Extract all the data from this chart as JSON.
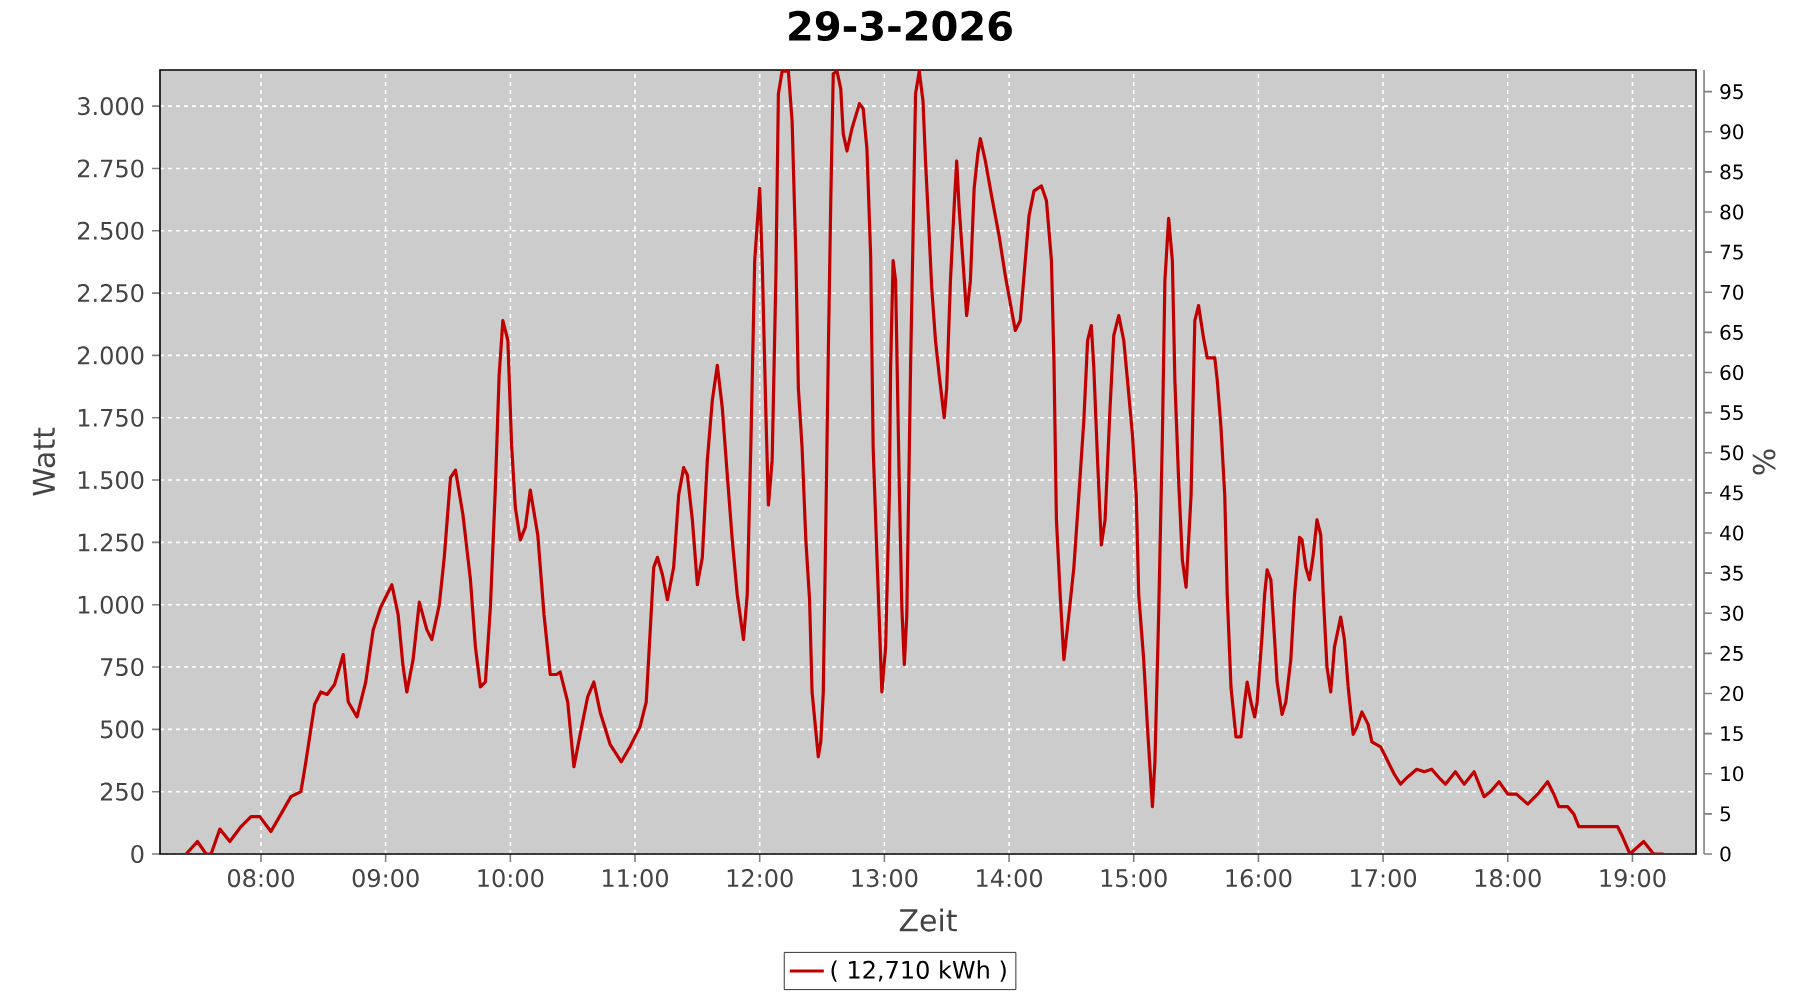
{
  "chart_data": {
    "type": "line",
    "title": "29-3-2026",
    "xlabel": "Zeit",
    "ylabel": "Watt",
    "y2label": "%",
    "x": [
      7.4,
      7.49,
      7.56,
      7.6,
      7.67,
      7.75,
      7.84,
      7.92,
      7.99,
      8.08,
      8.16,
      8.24,
      8.32,
      8.36,
      8.43,
      8.48,
      8.53,
      8.59,
      8.66,
      8.7,
      8.77,
      8.84,
      8.9,
      8.96,
      9.05,
      9.1,
      9.14,
      9.17,
      9.22,
      9.27,
      9.33,
      9.37,
      9.43,
      9.47,
      9.52,
      9.56,
      9.62,
      9.68,
      9.72,
      9.76,
      9.8,
      9.84,
      9.88,
      9.91,
      9.94,
      9.98,
      10.01,
      10.04,
      10.08,
      10.12,
      10.16,
      10.22,
      10.27,
      10.32,
      10.37,
      10.4,
      10.46,
      10.51,
      10.56,
      10.62,
      10.67,
      10.72,
      10.8,
      10.89,
      10.96,
      11.04,
      11.09,
      11.12,
      11.15,
      11.18,
      11.22,
      11.26,
      11.31,
      11.35,
      11.39,
      11.42,
      11.46,
      11.5,
      11.54,
      11.58,
      11.62,
      11.66,
      11.7,
      11.74,
      11.78,
      11.82,
      11.87,
      11.9,
      11.93,
      11.96,
      12.0,
      12.02,
      12.05,
      12.07,
      12.1,
      12.13,
      12.15,
      12.18,
      12.23,
      12.26,
      12.29,
      12.31,
      12.34,
      12.37,
      12.4,
      12.42,
      12.47,
      12.49,
      12.51,
      12.53,
      12.55,
      12.57,
      12.59,
      12.62,
      12.65,
      12.67,
      12.7,
      12.74,
      12.8,
      12.83,
      12.86,
      12.89,
      12.91,
      12.94,
      12.98,
      13.01,
      13.04,
      13.05,
      13.07,
      13.09,
      13.12,
      13.14,
      13.16,
      13.18,
      13.21,
      13.23,
      13.25,
      13.28,
      13.31,
      13.33,
      13.36,
      13.38,
      13.41,
      13.44,
      13.48,
      13.5,
      13.53,
      13.56,
      13.58,
      13.6,
      13.63,
      13.66,
      13.69,
      13.72,
      13.75,
      13.77,
      13.81,
      13.86,
      13.92,
      13.97,
      14.05,
      14.09,
      14.12,
      14.16,
      14.2,
      14.26,
      14.3,
      14.34,
      14.36,
      14.38,
      14.41,
      14.44,
      14.48,
      14.52,
      14.56,
      14.6,
      14.63,
      14.66,
      14.68,
      14.71,
      14.74,
      14.77,
      14.81,
      14.84,
      14.88,
      14.92,
      14.95,
      14.99,
      15.02,
      15.04,
      15.08,
      15.11,
      15.15,
      15.17,
      15.2,
      15.23,
      15.25,
      15.28,
      15.31,
      15.33,
      15.36,
      15.39,
      15.42,
      15.46,
      15.49,
      15.52,
      15.56,
      15.59,
      15.65,
      15.67,
      15.7,
      15.73,
      15.75,
      15.78,
      15.82,
      15.86,
      15.89,
      15.91,
      15.94,
      15.97,
      15.99,
      16.03,
      16.05,
      16.07,
      16.1,
      16.13,
      16.15,
      16.19,
      16.22,
      16.26,
      16.29,
      16.33,
      16.35,
      16.38,
      16.41,
      16.44,
      16.47,
      16.5,
      16.52,
      16.55,
      16.58,
      16.61,
      16.66,
      16.69,
      16.72,
      16.76,
      16.79,
      16.83,
      16.88,
      16.91,
      16.98,
      17.04,
      17.09,
      17.14,
      17.2,
      17.27,
      17.33,
      17.39,
      17.46,
      17.5,
      17.58,
      17.65,
      17.73,
      17.81,
      17.86,
      17.93,
      18.0,
      18.07,
      18.16,
      18.24,
      18.32,
      18.37,
      18.41,
      18.48,
      18.53,
      18.57,
      18.66,
      18.8,
      18.88,
      18.92,
      18.98,
      19.09,
      19.17,
      19.25
    ],
    "series": [
      {
        "name": "( 12,710 kWh )",
        "color": "#c00000",
        "values": [
          0,
          50,
          0,
          0,
          100,
          50,
          110,
          150,
          150,
          90,
          160,
          230,
          250,
          370,
          600,
          650,
          640,
          680,
          800,
          610,
          550,
          690,
          900,
          990,
          1080,
          960,
          750,
          650,
          780,
          1010,
          900,
          860,
          1000,
          1190,
          1510,
          1540,
          1360,
          1100,
          830,
          670,
          690,
          990,
          1470,
          1920,
          2140,
          2060,
          1640,
          1390,
          1260,
          1310,
          1460,
          1280,
          960,
          720,
          720,
          730,
          610,
          350,
          480,
          630,
          690,
          570,
          440,
          370,
          430,
          510,
          610,
          880,
          1150,
          1190,
          1120,
          1020,
          1150,
          1440,
          1550,
          1520,
          1340,
          1080,
          1190,
          1580,
          1820,
          1960,
          1790,
          1520,
          1260,
          1040,
          860,
          1040,
          1660,
          2380,
          2670,
          2380,
          1760,
          1400,
          1580,
          2320,
          3050,
          3140,
          3140,
          2940,
          2400,
          1870,
          1630,
          1260,
          1020,
          650,
          390,
          450,
          650,
          1310,
          2000,
          2620,
          3130,
          3140,
          3070,
          2890,
          2820,
          2910,
          3010,
          2990,
          2830,
          2400,
          1630,
          1200,
          650,
          830,
          1440,
          1950,
          2380,
          2300,
          1470,
          990,
          760,
          960,
          1950,
          2480,
          3050,
          3140,
          3020,
          2780,
          2480,
          2270,
          2060,
          1920,
          1750,
          1870,
          2300,
          2600,
          2780,
          2590,
          2380,
          2160,
          2300,
          2670,
          2810,
          2870,
          2780,
          2640,
          2480,
          2320,
          2100,
          2140,
          2320,
          2560,
          2660,
          2680,
          2620,
          2380,
          1980,
          1340,
          1040,
          780,
          960,
          1150,
          1440,
          1740,
          2060,
          2120,
          1950,
          1580,
          1240,
          1340,
          1790,
          2080,
          2160,
          2060,
          1900,
          1680,
          1440,
          1040,
          780,
          510,
          190,
          370,
          960,
          1680,
          2300,
          2550,
          2380,
          1900,
          1500,
          1180,
          1070,
          1440,
          2140,
          2200,
          2070,
          1990,
          1990,
          1900,
          1710,
          1440,
          1040,
          670,
          470,
          470,
          610,
          690,
          610,
          550,
          610,
          880,
          1040,
          1140,
          1100,
          860,
          690,
          560,
          610,
          780,
          1040,
          1270,
          1260,
          1150,
          1100,
          1200,
          1340,
          1280,
          1040,
          750,
          650,
          830,
          950,
          860,
          670,
          480,
          510,
          570,
          520,
          450,
          430,
          370,
          320,
          280,
          310,
          340,
          330,
          340,
          300,
          280,
          330,
          280,
          330,
          230,
          250,
          290,
          240,
          240,
          200,
          240,
          290,
          240,
          190,
          190,
          160,
          110,
          110,
          110,
          110,
          70,
          0,
          50,
          0,
          0
        ]
      }
    ],
    "xlim": [
      7.19,
      19.51
    ],
    "xticks": [
      {
        "value": 8,
        "label": "08:00"
      },
      {
        "value": 9,
        "label": "09:00"
      },
      {
        "value": 10,
        "label": "10:00"
      },
      {
        "value": 11,
        "label": "11:00"
      },
      {
        "value": 12,
        "label": "12:00"
      },
      {
        "value": 13,
        "label": "13:00"
      },
      {
        "value": 14,
        "label": "14:00"
      },
      {
        "value": 15,
        "label": "15:00"
      },
      {
        "value": 16,
        "label": "16:00"
      },
      {
        "value": 17,
        "label": "17:00"
      },
      {
        "value": 18,
        "label": "18:00"
      },
      {
        "value": 19,
        "label": "19:00"
      }
    ],
    "ylim": [
      0,
      3145
    ],
    "yticks": [
      0,
      250,
      500,
      750,
      {
        "value": 1000,
        "label": "1.000"
      },
      {
        "value": 1250,
        "label": "1.250"
      },
      {
        "value": 1500,
        "label": "1.500"
      },
      {
        "value": 1750,
        "label": "1.750"
      },
      {
        "value": 2000,
        "label": "2.000"
      },
      {
        "value": 2250,
        "label": "2.250"
      },
      {
        "value": 2500,
        "label": "2.500"
      },
      {
        "value": 2750,
        "label": "2.750"
      },
      {
        "value": 3000,
        "label": "3.000"
      }
    ],
    "y2lim": [
      0,
      97.7
    ],
    "y2ticks": [
      0,
      5,
      10,
      15,
      20,
      25,
      30,
      35,
      40,
      45,
      50,
      55,
      60,
      65,
      70,
      75,
      80,
      85,
      90,
      95
    ],
    "grid": true,
    "legend": "bottom"
  }
}
